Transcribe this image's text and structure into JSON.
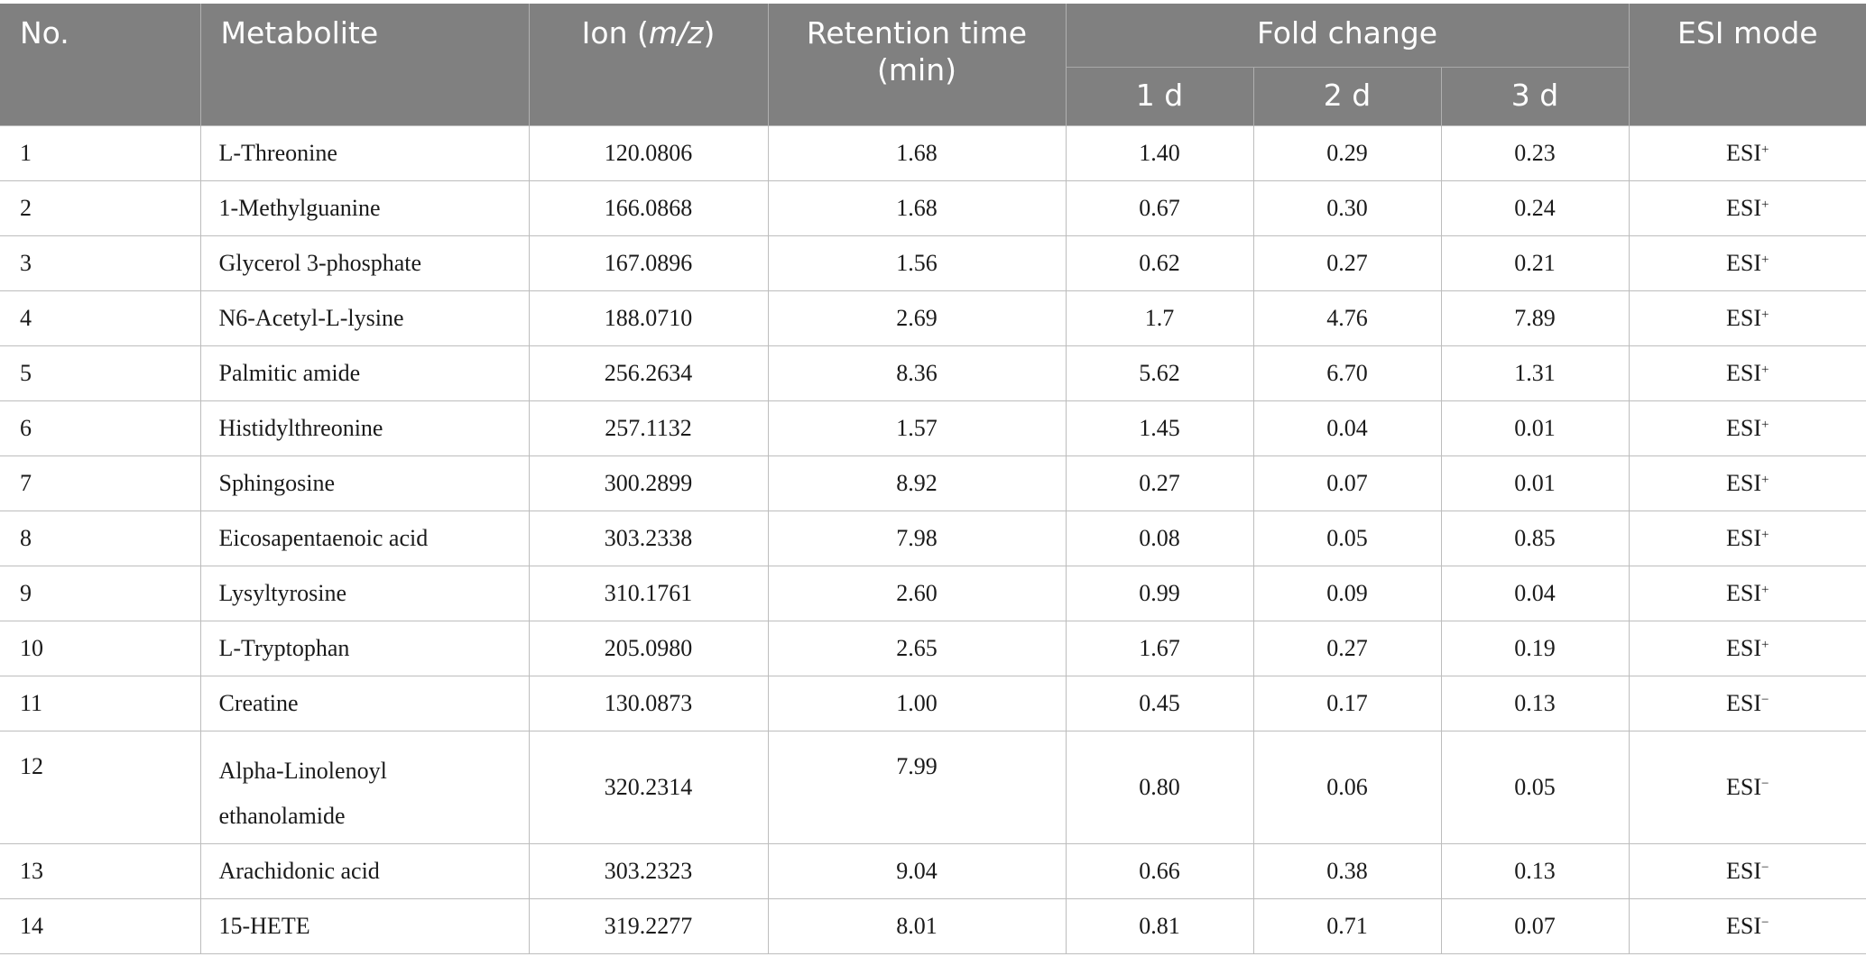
{
  "header": {
    "no": "No.",
    "metabolite": "Metabolite",
    "ion_prefix": "Ion (",
    "ion_italic": "m/z",
    "ion_suffix": ")",
    "retention_line1": "Retention time",
    "retention_line2": "(min)",
    "fold_change": "Fold change",
    "day1": "1 d",
    "day2": "2 d",
    "day3": "3 d",
    "esi_mode": "ESI mode"
  },
  "rows": [
    {
      "no": "1",
      "metabolite": "L-Threonine",
      "ion": "120.0806",
      "rt": "1.68",
      "fc1": "1.40",
      "fc2": "0.29",
      "fc3": "0.23",
      "esi": "ESI",
      "esi_sign": "+"
    },
    {
      "no": "2",
      "metabolite": "1-Methylguanine",
      "ion": "166.0868",
      "rt": "1.68",
      "fc1": "0.67",
      "fc2": "0.30",
      "fc3": "0.24",
      "esi": "ESI",
      "esi_sign": "+"
    },
    {
      "no": "3",
      "metabolite": "Glycerol 3-phosphate",
      "ion": "167.0896",
      "rt": "1.56",
      "fc1": "0.62",
      "fc2": "0.27",
      "fc3": "0.21",
      "esi": "ESI",
      "esi_sign": "+"
    },
    {
      "no": "4",
      "metabolite": "N6-Acetyl-L-lysine",
      "ion": "188.0710",
      "rt": "2.69",
      "fc1": "1.7",
      "fc2": "4.76",
      "fc3": "7.89",
      "esi": "ESI",
      "esi_sign": "+"
    },
    {
      "no": "5",
      "metabolite": "Palmitic amide",
      "ion": "256.2634",
      "rt": "8.36",
      "fc1": "5.62",
      "fc2": "6.70",
      "fc3": "1.31",
      "esi": "ESI",
      "esi_sign": "+"
    },
    {
      "no": "6",
      "metabolite": "Histidylthreonine",
      "ion": "257.1132",
      "rt": "1.57",
      "fc1": "1.45",
      "fc2": "0.04",
      "fc3": "0.01",
      "esi": "ESI",
      "esi_sign": "+"
    },
    {
      "no": "7",
      "metabolite": "Sphingosine",
      "ion": "300.2899",
      "rt": "8.92",
      "fc1": "0.27",
      "fc2": "0.07",
      "fc3": "0.01",
      "esi": "ESI",
      "esi_sign": "+"
    },
    {
      "no": "8",
      "metabolite": "Eicosapentaenoic acid",
      "ion": "303.2338",
      "rt": "7.98",
      "fc1": "0.08",
      "fc2": "0.05",
      "fc3": "0.85",
      "esi": "ESI",
      "esi_sign": "+"
    },
    {
      "no": "9",
      "metabolite": "Lysyltyrosine",
      "ion": "310.1761",
      "rt": "2.60",
      "fc1": "0.99",
      "fc2": "0.09",
      "fc3": "0.04",
      "esi": "ESI",
      "esi_sign": "+"
    },
    {
      "no": "10",
      "metabolite": "L-Tryptophan",
      "ion": "205.0980",
      "rt": "2.65",
      "fc1": "1.67",
      "fc2": "0.27",
      "fc3": "0.19",
      "esi": "ESI",
      "esi_sign": "+"
    },
    {
      "no": "11",
      "metabolite": "Creatine",
      "ion": "130.0873",
      "rt": "1.00",
      "fc1": "0.45",
      "fc2": "0.17",
      "fc3": "0.13",
      "esi": "ESI",
      "esi_sign": "−"
    },
    {
      "no": "12",
      "metabolite_line1": "Alpha-Linolenoyl",
      "metabolite_line2": "ethanolamide",
      "ion": "320.2314",
      "rt": "7.99",
      "fc1": "0.80",
      "fc2": "0.06",
      "fc3": "0.05",
      "esi": "ESI",
      "esi_sign": "−"
    },
    {
      "no": "13",
      "metabolite": "Arachidonic acid",
      "ion": "303.2323",
      "rt": "9.04",
      "fc1": "0.66",
      "fc2": "0.38",
      "fc3": "0.13",
      "esi": "ESI",
      "esi_sign": "−"
    },
    {
      "no": "14",
      "metabolite": "15-HETE",
      "ion": "319.2277",
      "rt": "8.01",
      "fc1": "0.81",
      "fc2": "0.71",
      "fc3": "0.07",
      "esi": "ESI",
      "esi_sign": "−"
    }
  ]
}
